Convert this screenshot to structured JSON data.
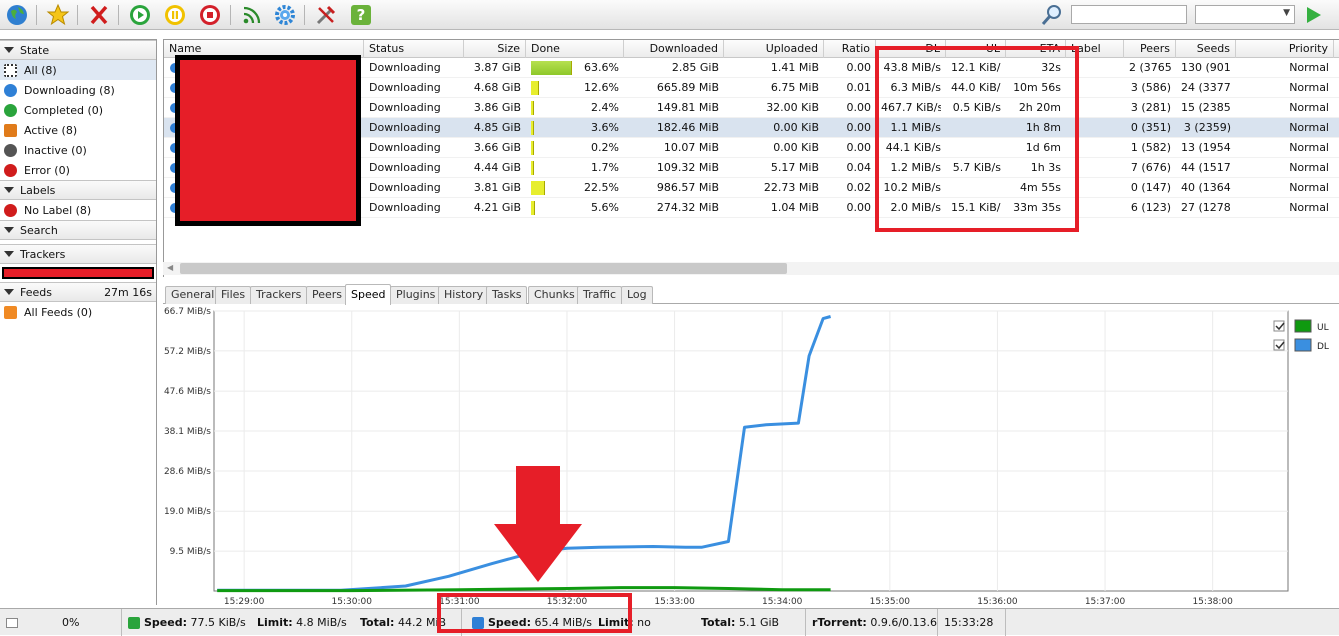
{
  "toolbar": {
    "icons": [
      "globe-icon",
      "star-icon",
      "delete-icon",
      "start-icon",
      "pause-icon",
      "stop-icon",
      "rss-icon",
      "settings-icon",
      "tools-icon",
      "help-icon",
      "search-icon",
      "play-icon"
    ]
  },
  "sidebar": {
    "state_title": "State",
    "state_items": [
      "All (8)",
      "Downloading (8)",
      "Completed (0)",
      "Active (8)",
      "Inactive (0)",
      "Error (0)"
    ],
    "labels_title": "Labels",
    "label_items": [
      "No Label (8)"
    ],
    "search_title": "Search",
    "trackers_title": "Trackers",
    "feeds_title": "Feeds",
    "feeds_time": "27m 16s",
    "feed_items": [
      "All Feeds (0)"
    ]
  },
  "table": {
    "headers": [
      "Name",
      "Status",
      "Size",
      "Done",
      "Downloaded",
      "Uploaded",
      "Ratio",
      "DL",
      "UL",
      "ETA",
      "Label",
      "Peers",
      "Seeds",
      "Priority"
    ],
    "rows": [
      {
        "status": "Downloading",
        "size": "3.87 GiB",
        "done": "63.6%",
        "downloaded": "2.85 GiB",
        "uploaded": "1.41 MiB",
        "ratio": "0.00",
        "dl": "43.8 MiB/s",
        "ul": "12.1 KiB/s",
        "eta": "32s",
        "peers": "2 (3765)",
        "seeds": "130 (9013)",
        "priority": "Normal"
      },
      {
        "status": "Downloading",
        "size": "4.68 GiB",
        "done": "12.6%",
        "downloaded": "665.89 MiB",
        "uploaded": "6.75 MiB",
        "ratio": "0.01",
        "dl": "6.3 MiB/s",
        "ul": "44.0 KiB/s",
        "eta": "10m 56s",
        "peers": "3 (586)",
        "seeds": "24 (3377)",
        "priority": "Normal"
      },
      {
        "status": "Downloading",
        "size": "3.86 GiB",
        "done": "2.4%",
        "downloaded": "149.81 MiB",
        "uploaded": "32.00 KiB",
        "ratio": "0.00",
        "dl": "467.7 KiB/s",
        "ul": "0.5 KiB/s",
        "eta": "2h 20m",
        "peers": "3 (281)",
        "seeds": "15 (2385)",
        "priority": "Normal"
      },
      {
        "status": "Downloading",
        "size": "4.85 GiB",
        "done": "3.6%",
        "downloaded": "182.46 MiB",
        "uploaded": "0.00 KiB",
        "ratio": "0.00",
        "dl": "1.1 MiB/s",
        "ul": "",
        "eta": "1h 8m",
        "peers": "0 (351)",
        "seeds": "3 (2359)",
        "priority": "Normal"
      },
      {
        "status": "Downloading",
        "size": "3.66 GiB",
        "done": "0.2%",
        "downloaded": "10.07 MiB",
        "uploaded": "0.00 KiB",
        "ratio": "0.00",
        "dl": "44.1 KiB/s",
        "ul": "",
        "eta": "1d 6m",
        "peers": "1 (582)",
        "seeds": "13 (1954)",
        "priority": "Normal"
      },
      {
        "status": "Downloading",
        "size": "4.44 GiB",
        "done": "1.7%",
        "downloaded": "109.32 MiB",
        "uploaded": "5.17 MiB",
        "ratio": "0.04",
        "dl": "1.2 MiB/s",
        "ul": "5.7 KiB/s",
        "eta": "1h 3s",
        "peers": "7 (676)",
        "seeds": "44 (1517)",
        "priority": "Normal"
      },
      {
        "status": "Downloading",
        "size": "3.81 GiB",
        "done": "22.5%",
        "downloaded": "986.57 MiB",
        "uploaded": "22.73 MiB",
        "ratio": "0.02",
        "dl": "10.2 MiB/s",
        "ul": "",
        "eta": "4m 55s",
        "peers": "0 (147)",
        "seeds": "40 (1364)",
        "priority": "Normal"
      },
      {
        "status": "Downloading",
        "size": "4.21 GiB",
        "done": "5.6%",
        "downloaded": "274.32 MiB",
        "uploaded": "1.04 MiB",
        "ratio": "0.00",
        "dl": "2.0 MiB/s",
        "ul": "15.1 KiB/s",
        "eta": "33m 35s",
        "peers": "6 (123)",
        "seeds": "27 (1278)",
        "priority": "Normal"
      }
    ]
  },
  "tabs": [
    "General",
    "Files",
    "Trackers",
    "Peers",
    "Speed",
    "Plugins",
    "History",
    "Tasks",
    "Chunks",
    "Traffic",
    "Log"
  ],
  "active_tab": "Speed",
  "chart_data": {
    "type": "line",
    "y_ticks": [
      "66.7 MiB/s",
      "57.2 MiB/s",
      "47.6 MiB/s",
      "38.1 MiB/s",
      "28.6 MiB/s",
      "19.0 MiB/s",
      "9.5 MiB/s"
    ],
    "y_tick_values": [
      66.7,
      57.2,
      47.6,
      38.1,
      28.6,
      19.0,
      9.5
    ],
    "ylim": [
      0,
      66.7
    ],
    "x_ticks": [
      "15:29:00",
      "15:30:00",
      "15:31:00",
      "15:32:00",
      "15:33:00",
      "15:34:00",
      "15:35:00",
      "15:36:00",
      "15:37:00",
      "15:38:00"
    ],
    "x_minutes": [
      0,
      1,
      2,
      3,
      4,
      5,
      6,
      7,
      8,
      9
    ],
    "xlim": [
      -0.28,
      9.7
    ],
    "legend": [
      {
        "name": "UL",
        "color": "#0f9a10"
      },
      {
        "name": "DL",
        "color": "#3a8fe0"
      }
    ],
    "series": [
      {
        "name": "DL",
        "color": "#3a8fe0",
        "x": [
          -0.25,
          0.0,
          0.5,
          0.9,
          1.1,
          1.5,
          1.9,
          2.3,
          2.7,
          3.0,
          3.3,
          3.8,
          4.1,
          4.25,
          4.5,
          4.65,
          4.85,
          5.15,
          5.25,
          5.38,
          5.45
        ],
        "values": [
          0.2,
          0.2,
          0.2,
          0.2,
          0.5,
          1.2,
          3.5,
          6.5,
          9.3,
          10.2,
          10.4,
          10.6,
          10.4,
          10.4,
          11.8,
          39.0,
          39.6,
          40.0,
          56.0,
          64.9,
          65.4
        ]
      },
      {
        "name": "UL",
        "color": "#0f9a10",
        "x": [
          -0.25,
          1.0,
          2.0,
          3.0,
          3.5,
          4.0,
          4.5,
          5.0,
          5.45
        ],
        "values": [
          0.1,
          0.1,
          0.3,
          0.6,
          0.8,
          0.8,
          0.6,
          0.3,
          0.3
        ]
      }
    ]
  },
  "status": {
    "percent": "0%",
    "ul_speed_label": "Speed:",
    "ul_speed": "77.5 KiB/s",
    "ul_limit_label": "Limit:",
    "ul_limit": "4.8 MiB/s",
    "ul_total_label": "Total:",
    "ul_total": "44.2 MiB",
    "dl_speed_label": "Speed:",
    "dl_speed": "65.4 MiB/s",
    "dl_limit_label": "Limit:",
    "dl_limit": "no",
    "dl_total_label": "Total:",
    "dl_total": "5.1 GiB",
    "client_label": "rTorrent:",
    "client_version": "0.9.6/0.13.6",
    "time": "15:33:28"
  }
}
